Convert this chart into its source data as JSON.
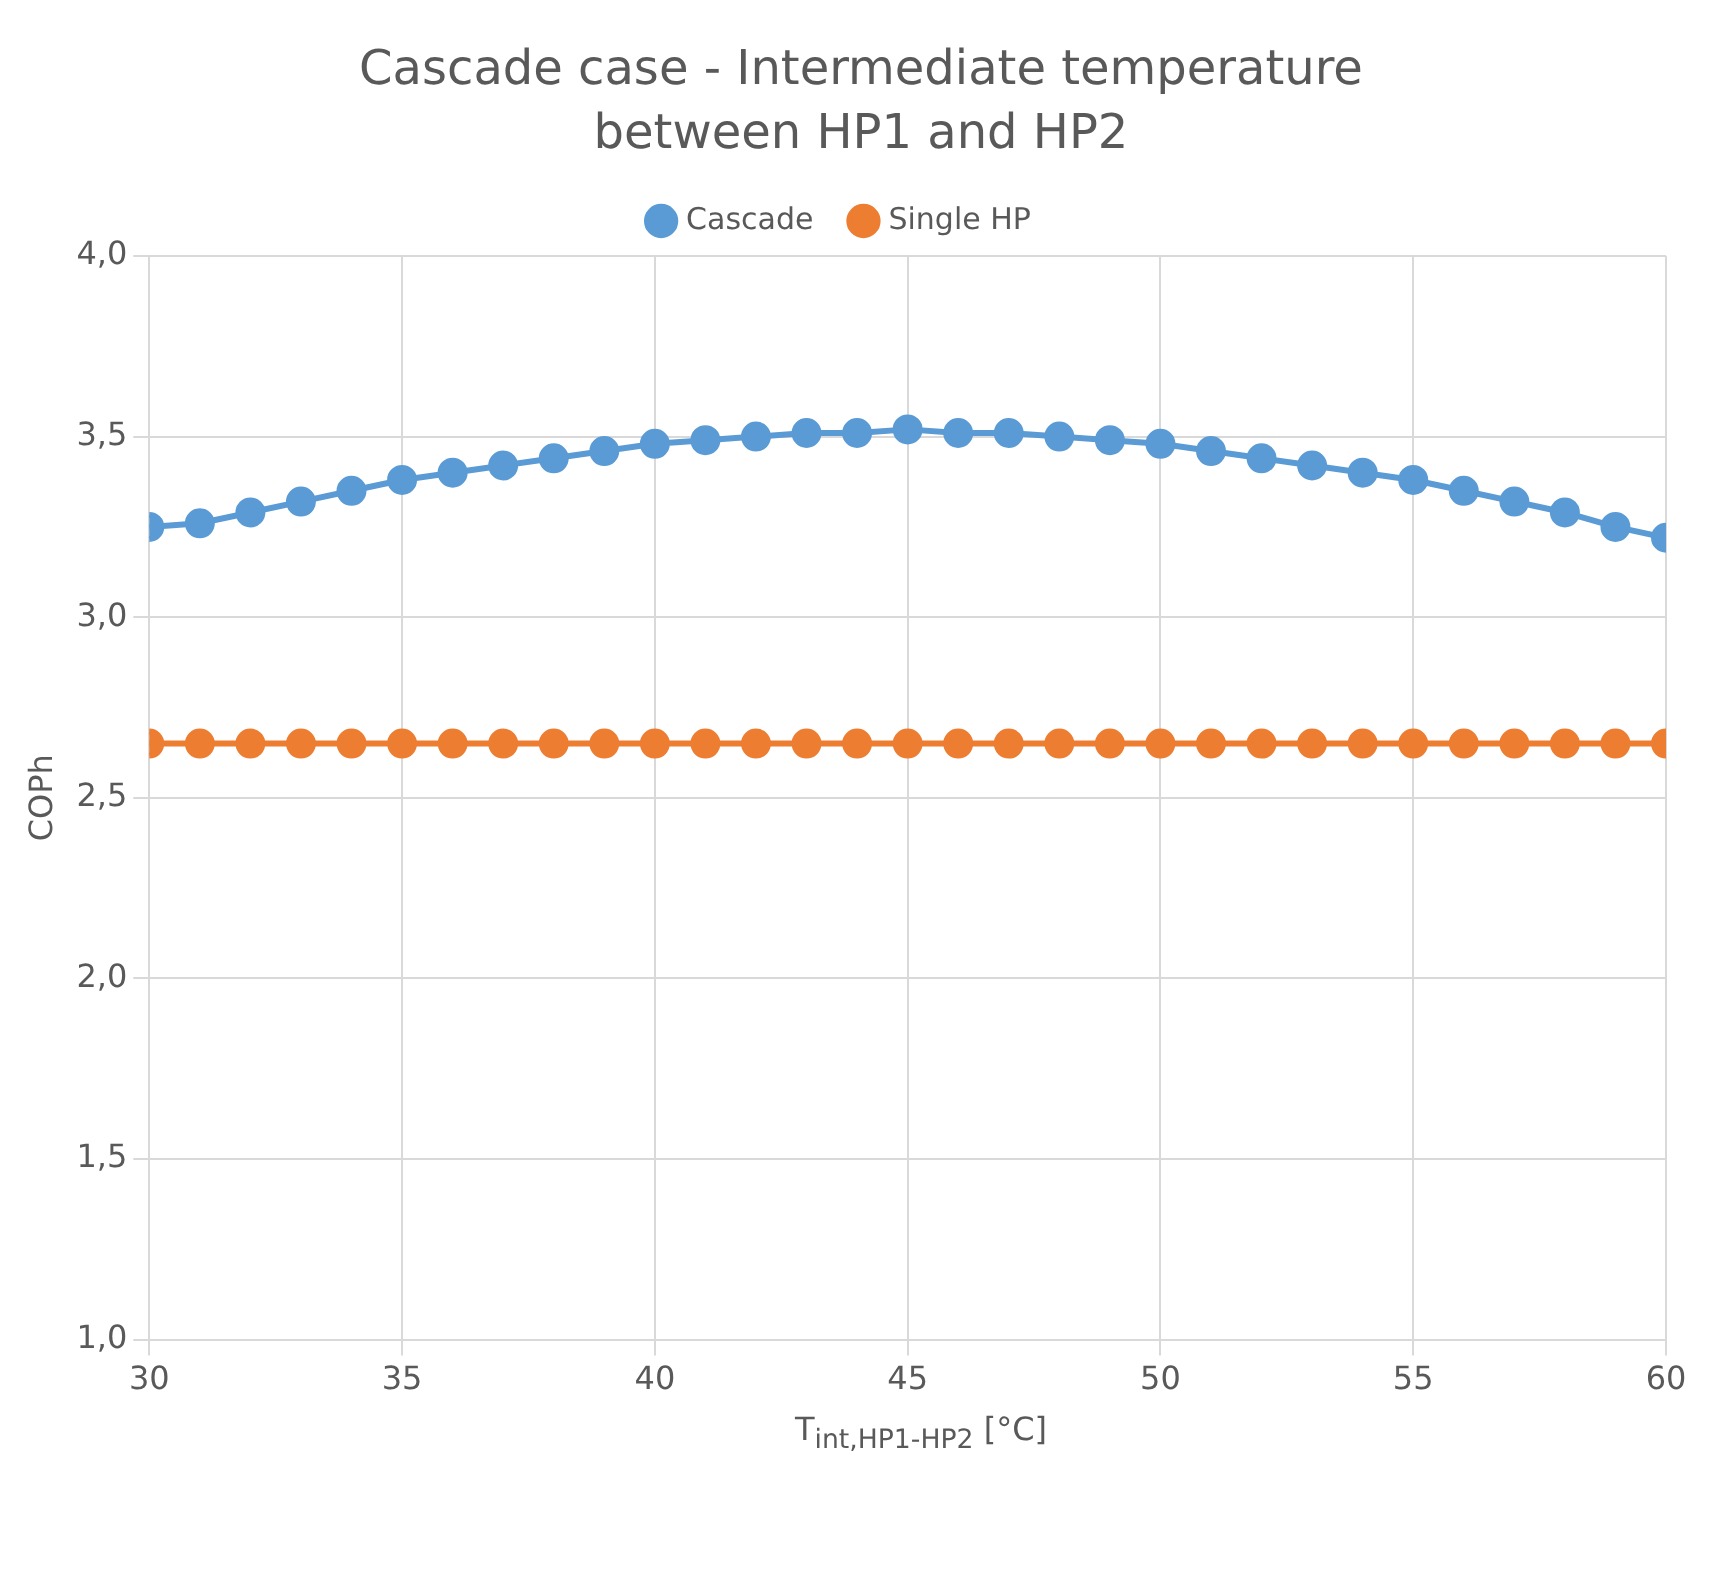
{
  "chart_data": {
    "type": "line",
    "title": "Cascade case - Intermediate temperature between HP1 and HP2",
    "xlabel": "T$_{int,HP1-HP2}$ [°C]",
    "ylabel": "COPh",
    "x": [
      30,
      31,
      32,
      33,
      34,
      35,
      36,
      37,
      38,
      39,
      40,
      41,
      42,
      43,
      44,
      45,
      46,
      47,
      48,
      49,
      50,
      51,
      52,
      53,
      54,
      55,
      56,
      57,
      58,
      59,
      60
    ],
    "series": [
      {
        "name": "Cascade",
        "color": "#5b9bd5",
        "values": [
          3.25,
          3.26,
          3.29,
          3.32,
          3.35,
          3.38,
          3.4,
          3.42,
          3.44,
          3.46,
          3.48,
          3.49,
          3.5,
          3.51,
          3.51,
          3.52,
          3.51,
          3.51,
          3.5,
          3.49,
          3.48,
          3.46,
          3.44,
          3.42,
          3.4,
          3.38,
          3.35,
          3.32,
          3.29,
          3.25,
          3.22
        ]
      },
      {
        "name": "Single HP",
        "color": "#ed7d31",
        "values": [
          2.65,
          2.65,
          2.65,
          2.65,
          2.65,
          2.65,
          2.65,
          2.65,
          2.65,
          2.65,
          2.65,
          2.65,
          2.65,
          2.65,
          2.65,
          2.65,
          2.65,
          2.65,
          2.65,
          2.65,
          2.65,
          2.65,
          2.65,
          2.65,
          2.65,
          2.65,
          2.65,
          2.65,
          2.65,
          2.65,
          2.65
        ]
      }
    ],
    "xlim": [
      30,
      60
    ],
    "xticks": [
      30,
      35,
      40,
      45,
      50,
      55,
      60
    ],
    "ylim": [
      1,
      4
    ],
    "yticks": [
      {
        "value": 1,
        "label": "1,0"
      },
      {
        "value": 1.5,
        "label": "1,5"
      },
      {
        "value": 2,
        "label": "2,0"
      },
      {
        "value": 2.5,
        "label": "2,5"
      },
      {
        "value": 3,
        "label": "3,0"
      },
      {
        "value": 3.5,
        "label": "3,5"
      },
      {
        "value": 4,
        "label": "4,0"
      }
    ],
    "grid": true,
    "legend": "top",
    "marker": "circle",
    "line_style": "solid"
  }
}
